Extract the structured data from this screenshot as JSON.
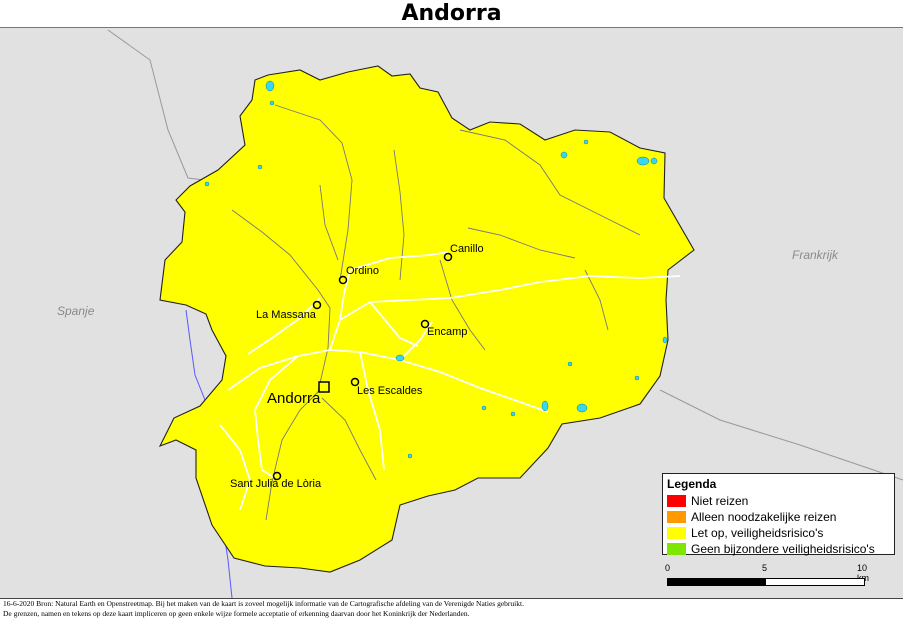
{
  "title": "Andorra",
  "countries": {
    "spain": "Spanje",
    "france": "Frankrijk"
  },
  "capital": "Andorra",
  "towns": [
    "Canillo",
    "Ordino",
    "La Massana",
    "Encamp",
    "Les Escaldes",
    "Sant Julià de Lòria"
  ],
  "legend": {
    "title": "Legenda",
    "items": [
      {
        "label": "Niet reizen",
        "color": "#ff0000"
      },
      {
        "label": "Alleen noodzakelijke reizen",
        "color": "#ff9900"
      },
      {
        "label": "Let op, veiligheidsrisico's",
        "color": "#ffff00"
      },
      {
        "label": "Geen bijzondere veiligheidsrisico's",
        "color": "#7fe600"
      }
    ]
  },
  "scale": {
    "labels": [
      "0",
      "5",
      "10 km"
    ]
  },
  "footer": {
    "line1": "16-6-2020 Bron: Natural Earth en Openstreetmap. Bij het maken van de kaart is zoveel mogelijk informatie van de Cartografische afdeling van de Verenigde Naties gebruikt.",
    "line2": "De grenzen, namen en tekens op deze kaart impliceren op geen enkele wijze formele acceptatie of erkenning daarvan door het Koninkrijk der Nederlanden."
  },
  "colors": {
    "country_fill": "#ffff00",
    "surround": "#e1e1e1",
    "water": "#3ad6f0",
    "river": "#5a5aff"
  }
}
